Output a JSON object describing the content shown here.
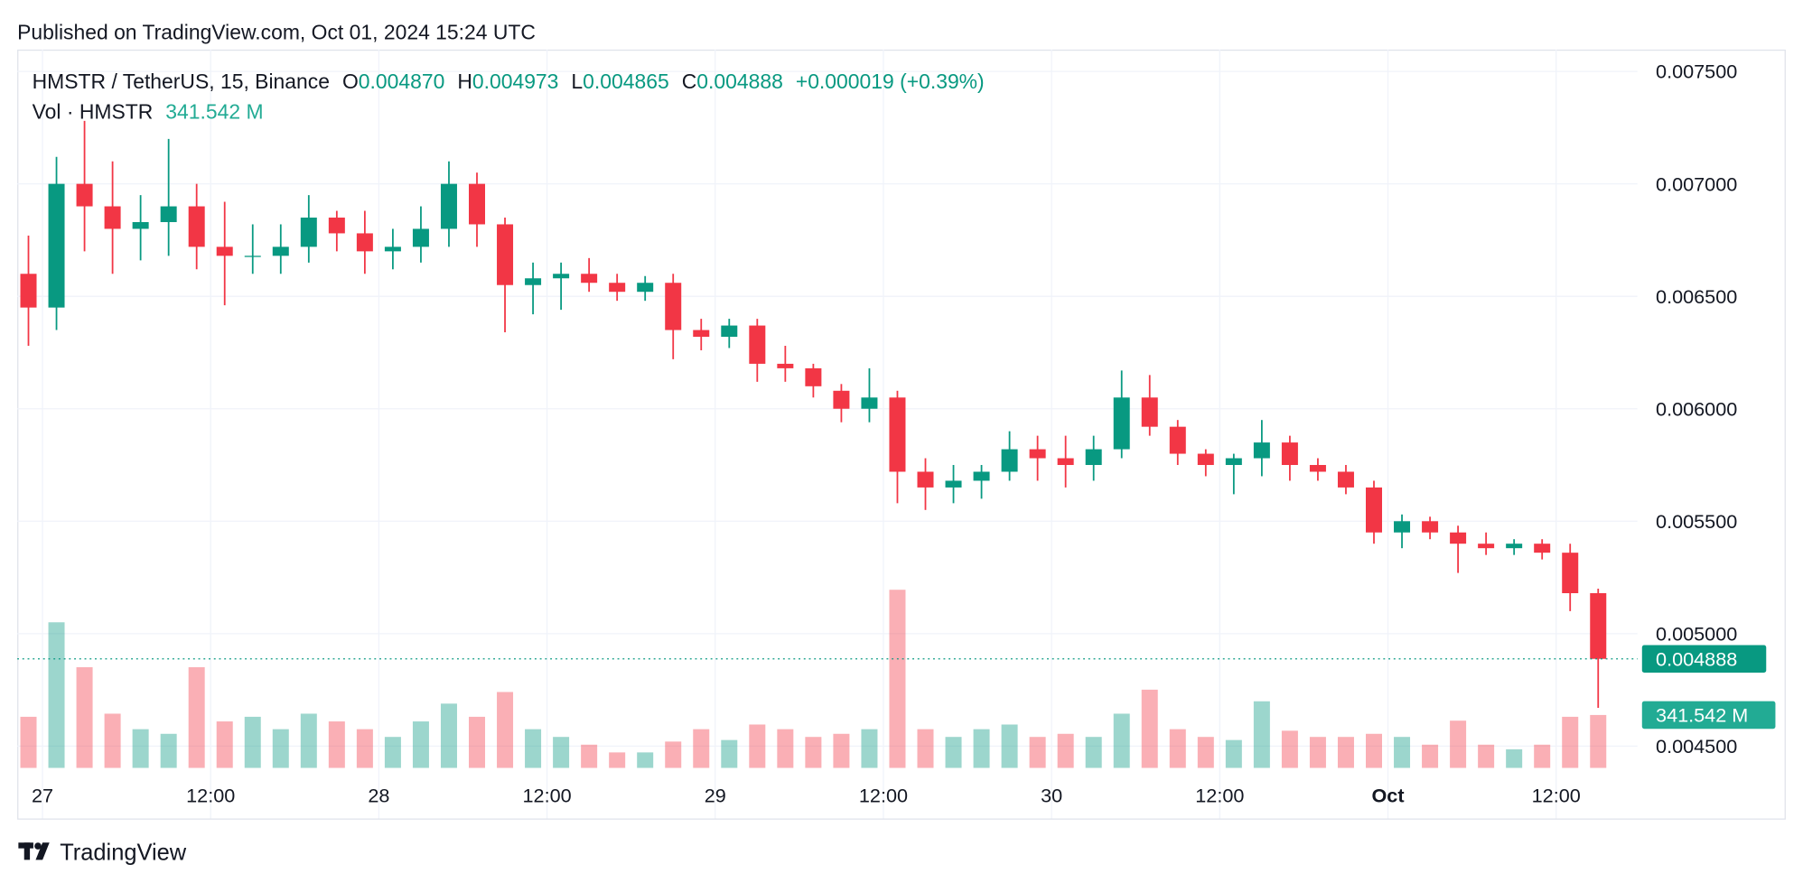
{
  "chart_data": {
    "type": "candlestick",
    "published": "Published on TradingView.com, Oct 01, 2024 15:24 UTC",
    "symbol": "HMSTR / TetherUS, 15, Binance",
    "ohlc_legend": [
      {
        "key": "O",
        "text": "0.004870"
      },
      {
        "key": "H",
        "text": "0.004973"
      },
      {
        "key": "L",
        "text": "0.004865"
      },
      {
        "key": "C",
        "text": "0.004888"
      }
    ],
    "change": "+0.000019 (+0.39%)",
    "volume_title": "Vol · HMSTR",
    "brand": "TradingView",
    "up_color": "#089981",
    "down_color": "#f23645",
    "grid": true,
    "x": [
      "2024-09-26 23:00",
      "2024-09-27 01:00",
      "2024-09-27 03:00",
      "2024-09-27 05:00",
      "2024-09-27 07:00",
      "2024-09-27 09:00",
      "2024-09-27 11:00",
      "2024-09-27 13:00",
      "2024-09-27 15:00",
      "2024-09-27 17:00",
      "2024-09-27 19:00",
      "2024-09-27 21:00",
      "2024-09-27 23:00",
      "2024-09-28 01:00",
      "2024-09-28 03:00",
      "2024-09-28 05:00",
      "2024-09-28 07:00",
      "2024-09-28 09:00",
      "2024-09-28 11:00",
      "2024-09-28 13:00",
      "2024-09-28 15:00",
      "2024-09-28 17:00",
      "2024-09-28 19:00",
      "2024-09-28 21:00",
      "2024-09-28 23:00",
      "2024-09-29 01:00",
      "2024-09-29 03:00",
      "2024-09-29 05:00",
      "2024-09-29 07:00",
      "2024-09-29 09:00",
      "2024-09-29 11:00",
      "2024-09-29 13:00",
      "2024-09-29 15:00",
      "2024-09-29 17:00",
      "2024-09-29 19:00",
      "2024-09-29 21:00",
      "2024-09-29 23:00",
      "2024-09-30 01:00",
      "2024-09-30 03:00",
      "2024-09-30 05:00",
      "2024-09-30 07:00",
      "2024-09-30 09:00",
      "2024-09-30 11:00",
      "2024-09-30 13:00",
      "2024-09-30 15:00",
      "2024-09-30 17:00",
      "2024-09-30 19:00",
      "2024-09-30 21:00",
      "2024-09-30 23:00",
      "2024-10-01 01:00",
      "2024-10-01 03:00",
      "2024-10-01 05:00",
      "2024-10-01 07:00",
      "2024-10-01 09:00",
      "2024-10-01 11:00",
      "2024-10-01 13:00",
      "2024-10-01 15:00"
    ],
    "open": [
      0.0066,
      0.00645,
      0.007,
      0.0069,
      0.0068,
      0.00683,
      0.0069,
      0.00672,
      0.00668,
      0.00668,
      0.00672,
      0.00685,
      0.00678,
      0.0067,
      0.00672,
      0.0068,
      0.007,
      0.00682,
      0.00655,
      0.00658,
      0.0066,
      0.00656,
      0.00652,
      0.00656,
      0.00635,
      0.00632,
      0.00637,
      0.0062,
      0.00618,
      0.00608,
      0.006,
      0.00605,
      0.00572,
      0.00565,
      0.00568,
      0.00572,
      0.00582,
      0.00578,
      0.00575,
      0.00582,
      0.00605,
      0.00592,
      0.0058,
      0.00575,
      0.00578,
      0.00585,
      0.00575,
      0.00572,
      0.00565,
      0.00545,
      0.0055,
      0.00545,
      0.0054,
      0.00538,
      0.0054,
      0.00536,
      0.00518
    ],
    "high": [
      0.00677,
      0.00712,
      0.00728,
      0.0071,
      0.00695,
      0.0072,
      0.007,
      0.00692,
      0.00682,
      0.00682,
      0.00695,
      0.00688,
      0.00688,
      0.0068,
      0.0069,
      0.0071,
      0.00705,
      0.00685,
      0.00665,
      0.00665,
      0.00667,
      0.0066,
      0.00659,
      0.0066,
      0.0064,
      0.0064,
      0.0064,
      0.00628,
      0.0062,
      0.00611,
      0.00618,
      0.00608,
      0.00578,
      0.00575,
      0.00575,
      0.0059,
      0.00588,
      0.00588,
      0.00588,
      0.00617,
      0.00615,
      0.00595,
      0.00582,
      0.0058,
      0.00595,
      0.00588,
      0.00578,
      0.00575,
      0.00568,
      0.00553,
      0.00552,
      0.00548,
      0.00545,
      0.00542,
      0.00542,
      0.0054,
      0.0052
    ],
    "low": [
      0.00628,
      0.00635,
      0.0067,
      0.0066,
      0.00666,
      0.00668,
      0.00662,
      0.00646,
      0.0066,
      0.0066,
      0.00665,
      0.0067,
      0.0066,
      0.00662,
      0.00665,
      0.00672,
      0.00672,
      0.00634,
      0.00642,
      0.00644,
      0.00652,
      0.00648,
      0.00648,
      0.00622,
      0.00626,
      0.00627,
      0.00612,
      0.00612,
      0.00605,
      0.00594,
      0.00594,
      0.00558,
      0.00555,
      0.00558,
      0.0056,
      0.00568,
      0.00568,
      0.00565,
      0.00568,
      0.00578,
      0.00588,
      0.00575,
      0.0057,
      0.00562,
      0.0057,
      0.00568,
      0.00568,
      0.00562,
      0.0054,
      0.00538,
      0.00542,
      0.00527,
      0.00535,
      0.00535,
      0.00533,
      0.0051,
      0.00467
    ],
    "close": [
      0.00645,
      0.007,
      0.0069,
      0.0068,
      0.00683,
      0.0069,
      0.00672,
      0.00668,
      0.00668,
      0.00672,
      0.00685,
      0.00678,
      0.0067,
      0.00672,
      0.0068,
      0.007,
      0.00682,
      0.00655,
      0.00658,
      0.0066,
      0.00656,
      0.00652,
      0.00656,
      0.00635,
      0.00632,
      0.00637,
      0.0062,
      0.00618,
      0.0061,
      0.006,
      0.00605,
      0.00572,
      0.00565,
      0.00568,
      0.00572,
      0.00582,
      0.00578,
      0.00575,
      0.00582,
      0.00605,
      0.00592,
      0.0058,
      0.00575,
      0.00578,
      0.00585,
      0.00575,
      0.00572,
      0.00565,
      0.00545,
      0.0055,
      0.00545,
      0.0054,
      0.00538,
      0.0054,
      0.00536,
      0.00518,
      0.004888
    ],
    "volume": [
      330,
      940,
      650,
      350,
      250,
      220,
      650,
      300,
      330,
      250,
      350,
      300,
      250,
      200,
      300,
      415,
      330,
      490,
      250,
      200,
      150,
      100,
      100,
      170,
      250,
      180,
      280,
      250,
      200,
      220,
      250,
      1150,
      250,
      200,
      250,
      280,
      200,
      220,
      200,
      350,
      505,
      250,
      200,
      180,
      430,
      240,
      200,
      200,
      220,
      200,
      150,
      305,
      150,
      120,
      150,
      330,
      341.542
    ],
    "xlim": [
      "2024-09-26 22:12",
      "2024-10-01 17:48"
    ],
    "xticks": [
      {
        "value": "2024-09-27 00:00",
        "label": "27"
      },
      {
        "value": "2024-09-27 12:00",
        "label": "12:00"
      },
      {
        "value": "2024-09-28 00:00",
        "label": "28"
      },
      {
        "value": "2024-09-28 12:00",
        "label": "12:00"
      },
      {
        "value": "2024-09-29 00:00",
        "label": "29"
      },
      {
        "value": "2024-09-29 12:00",
        "label": "12:00"
      },
      {
        "value": "2024-09-30 00:00",
        "label": "30"
      },
      {
        "value": "2024-09-30 12:00",
        "label": "12:00"
      },
      {
        "value": "2024-10-01 00:00",
        "label": "Oct"
      },
      {
        "value": "2024-10-01 12:00",
        "label": "12:00"
      }
    ],
    "ylim": [
      0.004352,
      0.007597
    ],
    "yticks": [
      {
        "value": 0.0045,
        "label": "0.004500"
      },
      {
        "value": 0.005,
        "label": "0.005000"
      },
      {
        "value": 0.0055,
        "label": "0.005500"
      },
      {
        "value": 0.006,
        "label": "0.006000"
      },
      {
        "value": 0.0065,
        "label": "0.006500"
      },
      {
        "value": 0.007,
        "label": "0.007000"
      },
      {
        "value": 0.0075,
        "label": "0.007500"
      }
    ],
    "volume_ylim": [
      0,
      1150
    ],
    "last_price": {
      "value": 0.004888,
      "label": "0.004888"
    },
    "last_volume": {
      "value": 341.542,
      "label": "341.542 M"
    }
  }
}
